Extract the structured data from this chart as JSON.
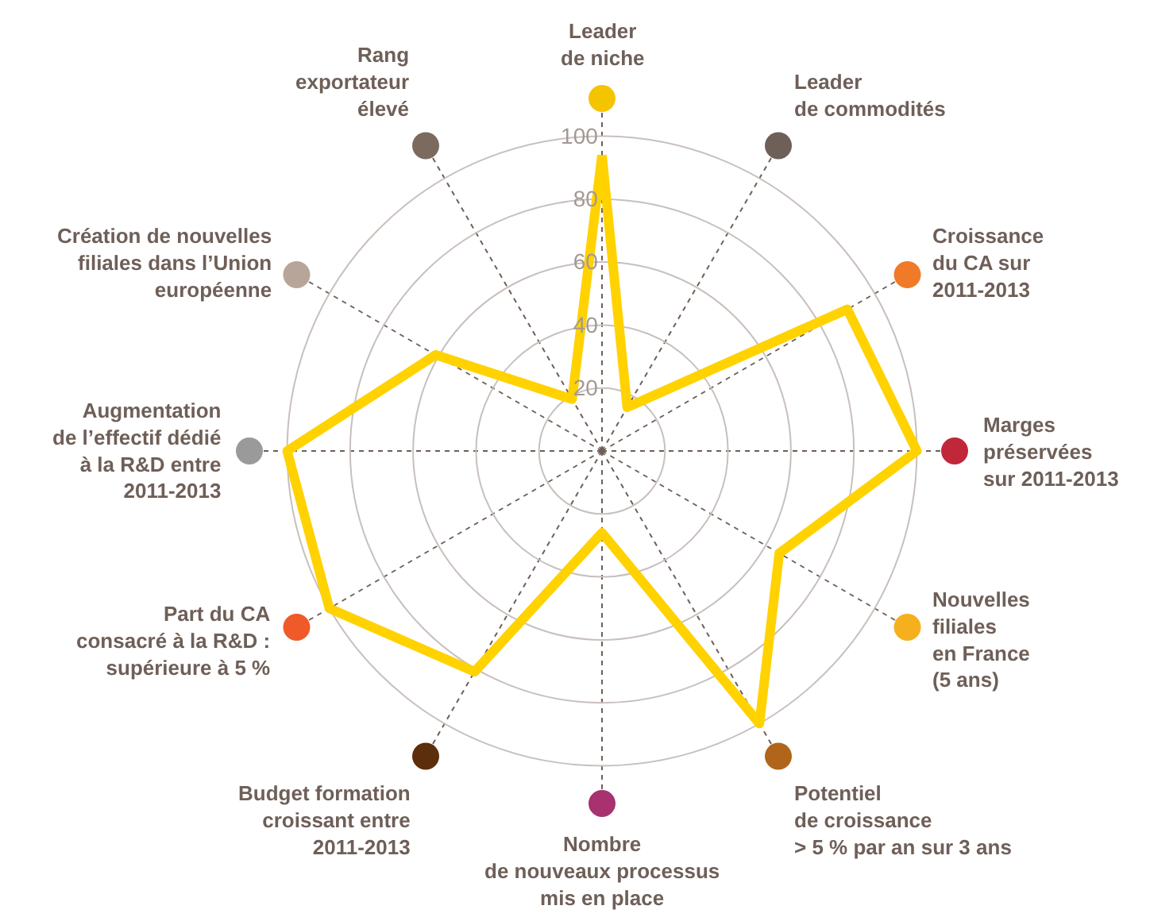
{
  "chart_data": {
    "type": "radar",
    "categories": [
      "Leader\nde niche",
      "Leader\nde commodités",
      "Croissance\ndu CA sur\n2011-2013",
      "Marges\npréservées\nsur 2011-2013",
      "Nouvelles\nfiliales\nen France\n(5 ans)",
      "Potentiel\nde croissance\n> 5 % par an sur 3 ans",
      "Nombre\nde nouveaux processus\nmis en place",
      "Budget formation\ncroissant entre\n2011-2013",
      "Part du CA\nconsacré à la R&D :\nsupérieure à 5 %",
      "Augmentation\nde l’effectif dédié\nà la R&D entre\n2011-2013",
      "Création de nouvelles\nfiliales dans l’Union\neuropéenne",
      "Rang\nexportateur\nélevé"
    ],
    "colors": [
      "#f5c400",
      "#6e5f58",
      "#f07a28",
      "#c0283a",
      "#f6b01e",
      "#b0651a",
      "#a83270",
      "#5c2e0c",
      "#f05a28",
      "#9a9a9a",
      "#b8a59a",
      "#7c6a5e"
    ],
    "series": [
      {
        "color": "#ffd200",
        "values": [
          94,
          16,
          90,
          100,
          65,
          100,
          26,
          81,
          100,
          100,
          61,
          19
        ]
      }
    ],
    "ylim": [
      0,
      112
    ],
    "yticks": [
      20,
      40,
      60,
      80,
      100
    ],
    "grid": true,
    "marker": "none",
    "line_style": "solid"
  }
}
